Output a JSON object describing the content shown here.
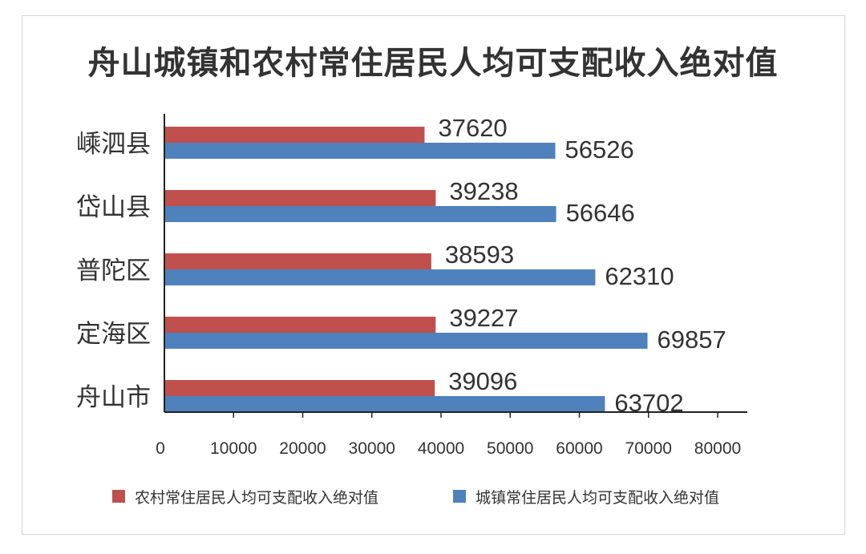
{
  "chart_data": {
    "type": "bar",
    "orientation": "horizontal",
    "title": "舟山城镇和农村常住居民人均可支配收入绝对值",
    "categories": [
      "嵊泗县",
      "岱山县",
      "普陀区",
      "定海区",
      "舟山市"
    ],
    "series": [
      {
        "name": "农村常住居民人均可支配收入绝对值",
        "color": "#c0504d",
        "values": [
          37620,
          39238,
          38593,
          39227,
          39096
        ]
      },
      {
        "name": "城镇常住居民人均可支配收入绝对值",
        "color": "#4f81bd",
        "values": [
          56526,
          56646,
          62310,
          69857,
          63702
        ]
      }
    ],
    "xlim": [
      0,
      80000
    ],
    "xticks": [
      "0",
      "10000",
      "20000",
      "30000",
      "40000",
      "50000",
      "60000",
      "70000",
      "80000"
    ],
    "grid": false,
    "legend_position": "bottom",
    "data_labels": true
  }
}
